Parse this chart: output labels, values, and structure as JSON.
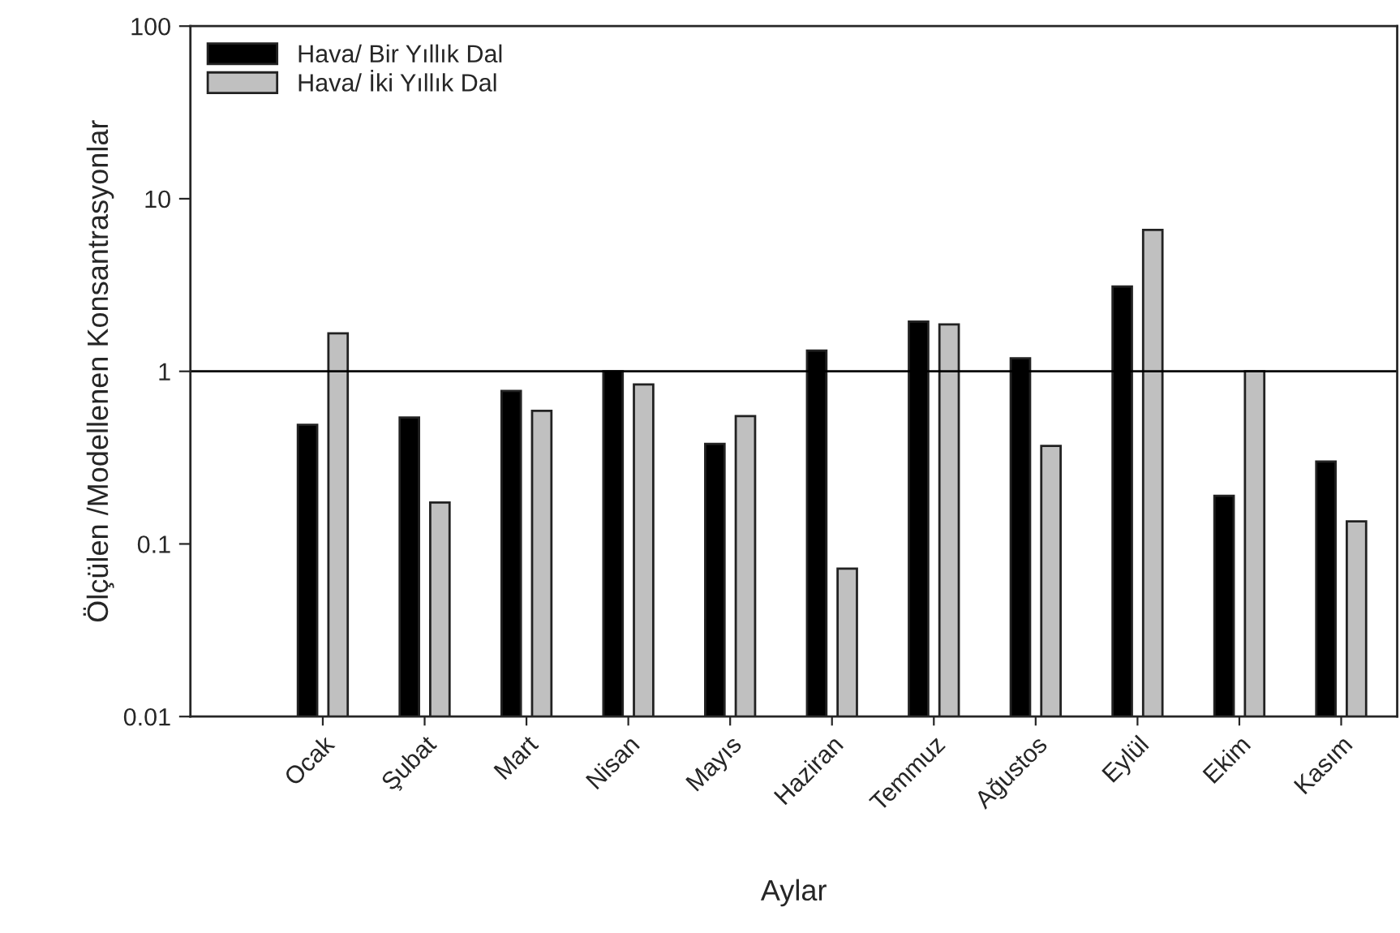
{
  "chart_data": {
    "type": "bar",
    "xlabel": "Aylar",
    "ylabel": "Ölçülen /Modellenen Konsantrasyonlar",
    "categories": [
      "Ocak",
      "Şubat",
      "Mart",
      "Nisan",
      "Mayıs",
      "Haziran",
      "Temmuz",
      "Ağustos",
      "Eylül",
      "Ekim",
      "Kasım"
    ],
    "series": [
      {
        "name": "Hava/ Bir Yıllık Dal",
        "color": "#000000",
        "values": [
          0.49,
          0.54,
          0.77,
          1.0,
          0.38,
          1.32,
          1.94,
          1.19,
          3.1,
          0.19,
          0.3
        ]
      },
      {
        "name": "Hava/ İki Yıllık Dal",
        "color": "#c0c0c0",
        "values": [
          1.66,
          0.174,
          0.59,
          0.84,
          0.55,
          0.072,
          1.87,
          0.37,
          6.6,
          1.0,
          0.135
        ]
      }
    ],
    "log": "y",
    "ylim": [
      0.01,
      100
    ],
    "yticks": [
      0.01,
      0.1,
      1,
      10,
      100
    ],
    "ref_lines": [
      {
        "axis": "y",
        "value": 1,
        "color": "#000000"
      }
    ],
    "grid": false,
    "legend": "top left"
  }
}
